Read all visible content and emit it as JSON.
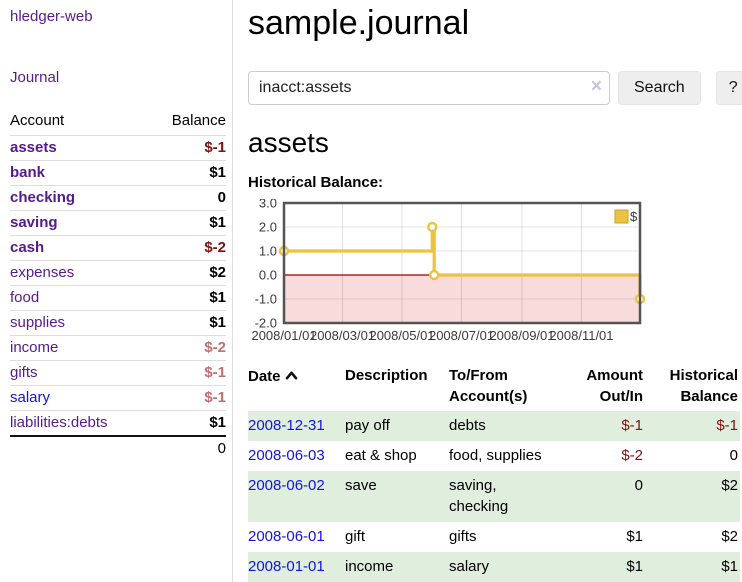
{
  "app": {
    "title": "hledger-web",
    "nav_journal": "Journal"
  },
  "sidebar": {
    "header": {
      "account": "Account",
      "balance": "Balance"
    },
    "accounts": [
      {
        "name": "assets",
        "balance": "$-1",
        "depth": 1,
        "bold": true,
        "balance_style": "neg",
        "link": "purple"
      },
      {
        "name": "bank",
        "balance": "$1",
        "depth": 2,
        "bold": true,
        "balance_style": "pos",
        "link": "purple"
      },
      {
        "name": "checking",
        "balance": "0",
        "depth": 3,
        "bold": true,
        "balance_style": "pos",
        "link": "purple"
      },
      {
        "name": "saving",
        "balance": "$1",
        "depth": 3,
        "bold": true,
        "balance_style": "pos",
        "link": "purple"
      },
      {
        "name": "cash",
        "balance": "$-2",
        "depth": 2,
        "bold": true,
        "balance_style": "neg",
        "link": "purple"
      },
      {
        "name": "expenses",
        "balance": "$2",
        "depth": 1,
        "bold": false,
        "balance_style": "pos",
        "link": "purple"
      },
      {
        "name": "food",
        "balance": "$1",
        "depth": 2,
        "bold": false,
        "balance_style": "pos",
        "link": "purple"
      },
      {
        "name": "supplies",
        "balance": "$1",
        "depth": 2,
        "bold": false,
        "balance_style": "pos",
        "link": "purple"
      },
      {
        "name": "income",
        "balance": "$-2",
        "depth": 1,
        "bold": false,
        "balance_style": "negdim",
        "link": "purple"
      },
      {
        "name": "gifts",
        "balance": "$-1",
        "depth": 2,
        "bold": false,
        "balance_style": "negdim",
        "link": "purple"
      },
      {
        "name": "salary",
        "balance": "$-1",
        "depth": 2,
        "bold": false,
        "balance_style": "negdim",
        "link": "blue"
      },
      {
        "name": "liabilities:debts",
        "balance": "$1",
        "depth": 1,
        "bold": false,
        "balance_style": "pos",
        "link": "purple"
      }
    ],
    "total": "0"
  },
  "main": {
    "title": "sample.journal",
    "search": {
      "value": "inacct:assets",
      "clear_icon": "×",
      "button": "Search",
      "help": "?"
    },
    "account_heading": "assets",
    "chart_label": "Historical Balance:"
  },
  "chart_data": {
    "type": "line",
    "title": "Historical Balance",
    "step": true,
    "series": [
      {
        "name": "$",
        "color": "#edc240",
        "marker_fill": "#ffffff",
        "points": [
          {
            "x": "2008-01-01",
            "y": 1
          },
          {
            "x": "2008-06-01",
            "y": 2
          },
          {
            "x": "2008-06-03",
            "y": 0
          },
          {
            "x": "2008-12-31",
            "y": -1
          }
        ]
      }
    ],
    "x_range": [
      "2008-01-01",
      "2008-12-31"
    ],
    "ylim": [
      -2,
      3
    ],
    "x_ticks": [
      "2008/01/01",
      "2008/03/01",
      "2008/05/01",
      "2008/07/01",
      "2008/09/01",
      "2008/11/01"
    ],
    "y_ticks": [
      3.0,
      2.0,
      1.0,
      0.0,
      -1.0,
      -2.0
    ],
    "grid": true,
    "border_color": "#545454",
    "zero_line_color": "#990000",
    "negative_region_color": "#f9dbdb",
    "legend": {
      "label": "$",
      "position": "top-right"
    }
  },
  "register": {
    "headers": [
      {
        "line1": "Date",
        "line2": "",
        "sort": "asc"
      },
      {
        "line1": "Description",
        "line2": ""
      },
      {
        "line1": "To/From",
        "line2": "Account(s)"
      },
      {
        "line1": "Amount",
        "line2": "Out/In"
      },
      {
        "line1": "Historical",
        "line2": "Balance"
      }
    ],
    "rows": [
      {
        "date": "2008-12-31",
        "description": "pay off",
        "accounts": "debts",
        "amount": "$-1",
        "amount_neg": true,
        "balance": "$-1",
        "balance_neg": true
      },
      {
        "date": "2008-06-03",
        "description": "eat & shop",
        "accounts": "food, supplies",
        "amount": "$-2",
        "amount_neg": true,
        "balance": "0",
        "balance_neg": false
      },
      {
        "date": "2008-06-02",
        "description": "save",
        "accounts": "saving, checking",
        "amount": "0",
        "amount_neg": false,
        "balance": "$2",
        "balance_neg": false
      },
      {
        "date": "2008-06-01",
        "description": "gift",
        "accounts": "gifts",
        "amount": "$1",
        "amount_neg": false,
        "balance": "$2",
        "balance_neg": false
      },
      {
        "date": "2008-01-01",
        "description": "income",
        "accounts": "salary",
        "amount": "$1",
        "amount_neg": false,
        "balance": "$1",
        "balance_neg": false
      }
    ]
  }
}
